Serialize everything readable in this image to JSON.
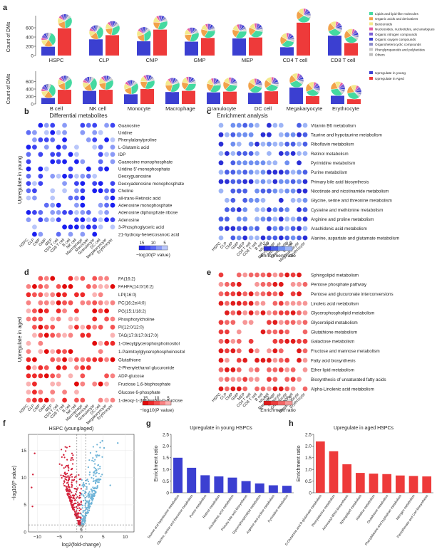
{
  "panels": {
    "a": "a",
    "b": "b",
    "c": "c",
    "d": "d",
    "e": "e",
    "f": "f",
    "g": "g",
    "h": "h"
  },
  "colors": {
    "young": "#3b3fd1",
    "aged": "#ee3a3a",
    "pie": [
      "#44d9a0",
      "#f2a24a",
      "#f4e98c",
      "#e65ea2",
      "#7b5fd6",
      "#3b3fd1",
      "#8a8ac8",
      "#c8c8c8",
      "#bdbdbd"
    ]
  },
  "legend_a": {
    "categories": [
      "Lipids and lipid-like molecules",
      "Organic acids and derivatives",
      "Benzenoids",
      "Nucleosides, nucleotides, and analogues",
      "Organic nitrogen compounds",
      "Organic oxygen compounds",
      "Organoheterocyclic compounds",
      "Phenylpropanoids and polyketides",
      "Others"
    ],
    "bars": [
      "Upregulate in young",
      "Upregulate in Aged"
    ]
  },
  "chart_data": [
    {
      "type": "bar",
      "panel": "a",
      "ylabel": "Count of DMs",
      "ylim": [
        0,
        800
      ],
      "yticks": [
        "0",
        "200",
        "400",
        "600"
      ],
      "rows": [
        {
          "categories": [
            "HSPC",
            "CLP",
            "CMP",
            "GMP",
            "MEP",
            "CD4 T cell",
            "CD8 T cell"
          ],
          "series": [
            {
              "name": "Upregulate in young",
              "values": [
                190,
                350,
                310,
                300,
                370,
                180,
                430
              ]
            },
            {
              "name": "Upregulate in Aged",
              "values": [
                590,
                440,
                560,
                380,
                390,
                710,
                270
              ]
            }
          ]
        },
        {
          "categories": [
            "B cell",
            "NK cell",
            "Monocyte",
            "Macrophage",
            "Granulocyte",
            "DC cell",
            "Megakaryocyte",
            "Erythrocyte"
          ],
          "series": [
            {
              "name": "Upregulate in young",
              "values": [
                160,
                350,
                260,
                320,
                310,
                300,
                440,
                220
              ]
            },
            {
              "name": "Upregulate in Aged",
              "values": [
                380,
                380,
                400,
                350,
                330,
                340,
                210,
                130
              ]
            }
          ]
        }
      ]
    },
    {
      "type": "scatter",
      "panel": "b",
      "title": "Differential metabolites",
      "ylabel": "Upregulate in young",
      "columns": [
        "HSPC",
        "CLP",
        "CMP",
        "GMP",
        "MEP",
        "CD4 T cell",
        "CD8 T cell",
        "B cell",
        "NK cell",
        "Macrophage",
        "Monocyte",
        "Granulocyte",
        "DC cell",
        "Megakaryocyte",
        "Erythrocyte"
      ],
      "rows": [
        "Guanosine",
        "Uridine",
        "Phenylalanylproline",
        "L-Glutamic acid",
        "IDP",
        "Guanosine monophosphate",
        "Uridine 5'-monophosphate",
        "Deoxyguanosine",
        "Deoxyadenosine monophosphate",
        "Choline",
        "all-trans-Retinoic acid",
        "Adenosine monophosphate",
        "Adenosine diphosphate ribose",
        "Adenosine",
        "3-Phosphoglyceric acid",
        "21-hydroxy-heneicosanoic acid"
      ],
      "legend_title": "−log10(P value)",
      "legend_ticks": [
        "15",
        "10",
        "5"
      ]
    },
    {
      "type": "scatter",
      "panel": "c",
      "title": "Enrichment analysis",
      "columns": [
        "HSPC",
        "CLP",
        "CMP",
        "GMP",
        "MEP",
        "CD4 T cell",
        "CD8 T cell",
        "B cell",
        "NK cell",
        "Macrophage",
        "Monocyte",
        "Granulocyte",
        "DC cell",
        "Megakaryocyte",
        "Erythrocyte"
      ],
      "rows": [
        "Vitamin B6 metabolism",
        "Taurine and hypotaurine metabolism",
        "Riboflavin metabolism",
        "Retinol metabolism",
        "Pyrimidine metabolism",
        "Purine metabolism",
        "Primary bile acid biosynthesis",
        "Nicotinate and nicotinamide metabolism",
        "Glycine, serine and threonine metabolism",
        "Cysteine and methionine metabolism",
        "Arginine and proline metabolism",
        "Arachidonic acid metabolism",
        "Alanine, aspartate and glutamate metabolism"
      ],
      "legend_title": "Enrichment ratio",
      "legend_ticks": [
        "2.0",
        "0.5"
      ]
    },
    {
      "type": "scatter",
      "panel": "d",
      "ylabel": "Upregulate in aged",
      "columns": [
        "HSPC",
        "CLP",
        "CMP",
        "GMP",
        "MEP",
        "CD4 T cell",
        "CD8 T cell",
        "B cell",
        "NK cell",
        "Macrophage",
        "Monocyte",
        "Granulocyte",
        "DC cell",
        "Megakaryocyte",
        "Erythrocyte"
      ],
      "rows": [
        "FA(16:2)",
        "FAHFA(14:0/16:2)",
        "LPI(16:0)",
        "PC(16:2e/4:0)",
        "PG(15:1/18:2)",
        "Phosphorylcholine",
        "PI(12:0/12:0)",
        "TAG(17:0/17:0/17:0)",
        "1-Oleoylglycerophosphoinositol",
        "1-Palmitoylglycerophosphoinositol",
        "Glutathione",
        "2-Phenylethanol glucuronide",
        "ADP-glucose",
        "Fructose 1,6-bisphosphate",
        "Glucose 6-phosphate",
        "1-deoxy-1-(N6-lysino)-D-fructose"
      ],
      "legend_title": "−log10(P value)",
      "legend_ticks": [
        "15",
        "10",
        "5"
      ]
    },
    {
      "type": "scatter",
      "panel": "e",
      "columns": [
        "HSPC",
        "CLP",
        "CMP",
        "GMP",
        "MEP",
        "CD4 T cell",
        "CD8 T cell",
        "B cell",
        "NK cell",
        "Macrophage",
        "Monocyte",
        "Granulocyte",
        "DC cell",
        "Megakaryocyte",
        "Erythrocyte"
      ],
      "rows": [
        "Sphingolipid metabolism",
        "Pentose phosphate pathway",
        "Pentose and glucuronate interconversions",
        "Linoleic acid metabolism",
        "Glycerophospholipid metabolism",
        "Glycerolipid metabolism",
        "Glutathione metabolism",
        "Galactose metabolism",
        "Fructose and mannose metabolism",
        "Fatty acid biosynthesis",
        "Ether lipid metabolism",
        "Biosynthesis of unsaturated fatty acids",
        "Alpha-Linolenic acid metabolism"
      ],
      "legend_title": "Enrichment ratio",
      "legend_ticks": [
        "2.0",
        "0.5"
      ]
    },
    {
      "type": "scatter",
      "panel": "f",
      "title": "HSPC (young/aged)",
      "xlabel": "log2(fold-change)",
      "ylabel": "−log10(P value)",
      "xlim": [
        -12,
        12
      ],
      "ylim": [
        0,
        18
      ],
      "xticks": [
        "−10",
        "−5",
        "0",
        "5",
        "10"
      ],
      "yticks": [
        "0",
        "5",
        "10",
        "15"
      ]
    },
    {
      "type": "bar",
      "panel": "g",
      "title": "Upregulate in young HSPCs",
      "ylabel": "Enrichment ratio",
      "ylim": [
        0,
        2.5
      ],
      "yticks": [
        "0",
        "0.5",
        "1.0",
        "1.5",
        "2.0",
        "2.5"
      ],
      "categories": [
        "Taurine and hypotaurine metabolism",
        "Glycine, serine and threonine metabolism",
        "Purine metabolism",
        "Retinol metabolism",
        "Arachidonic acid metabolism",
        "Primary bile acid biosynthesis",
        "Glycerophospholipid metabolism",
        "Arginine and proline metabolism",
        "Pyrimidine metabolism"
      ],
      "values": [
        1.5,
        1.07,
        0.75,
        0.7,
        0.65,
        0.5,
        0.4,
        0.32,
        0.3
      ]
    },
    {
      "type": "bar",
      "panel": "h",
      "title": "Upregulate in aged HSPCs",
      "ylabel": "Enrichment ratio",
      "ylim": [
        0,
        2.5
      ],
      "yticks": [
        "0",
        "0.5",
        "1.0",
        "1.5",
        "2.0",
        "2.5"
      ],
      "categories": [
        "D-Glutamine and D-glutamate metabolism",
        "Phenylalanine metabolism",
        "Aminoacyl-tRNA biosynthesis",
        "Sphingolipid metabolism",
        "Histidine metabolism",
        "Glutathione metabolism",
        "Phenylalanine and tryptophan metabolism",
        "Nitrogen metabolism",
        "Pantothenate and CoA biosynthesis"
      ],
      "values": [
        2.2,
        1.78,
        1.22,
        0.85,
        0.82,
        0.8,
        0.74,
        0.72,
        0.7
      ]
    }
  ]
}
